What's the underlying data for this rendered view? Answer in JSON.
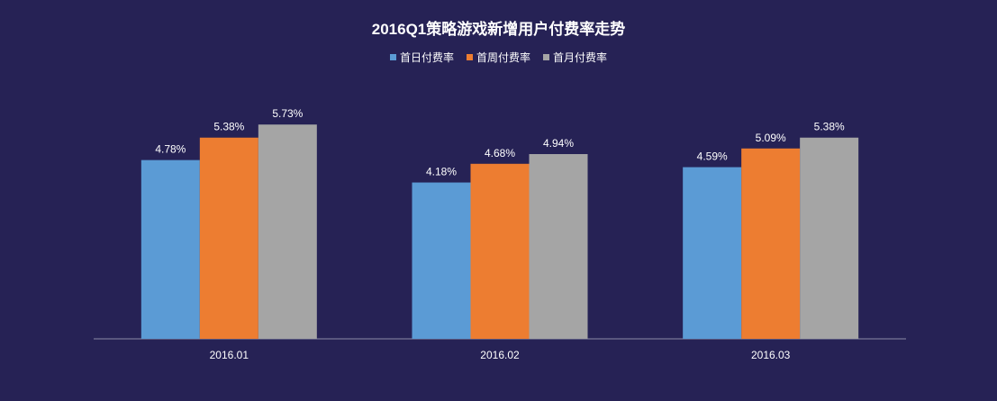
{
  "chart_data": {
    "type": "bar",
    "title": "2016Q1策略游戏新增用户付费率走势",
    "categories": [
      "2016.01",
      "2016.02",
      "2016.03"
    ],
    "series": [
      {
        "name": "首日付费率",
        "values": [
          4.78,
          4.18,
          4.59
        ],
        "color": "#5b9bd5"
      },
      {
        "name": "首周付费率",
        "values": [
          5.38,
          4.68,
          5.09
        ],
        "color": "#ed7d31"
      },
      {
        "name": "首月付费率",
        "values": [
          5.73,
          4.94,
          5.38
        ],
        "color": "#a5a5a5"
      }
    ],
    "data_labels": [
      [
        "4.78%",
        "5.38%",
        "5.73%"
      ],
      [
        "4.18%",
        "4.68%",
        "4.94%"
      ],
      [
        "4.59%",
        "5.09%",
        "5.38%"
      ]
    ],
    "xlabel": "",
    "ylabel": "",
    "ylim": [
      0,
      6
    ],
    "grid": false,
    "legend": "top-center",
    "axis_color": "#8c8ca8"
  }
}
